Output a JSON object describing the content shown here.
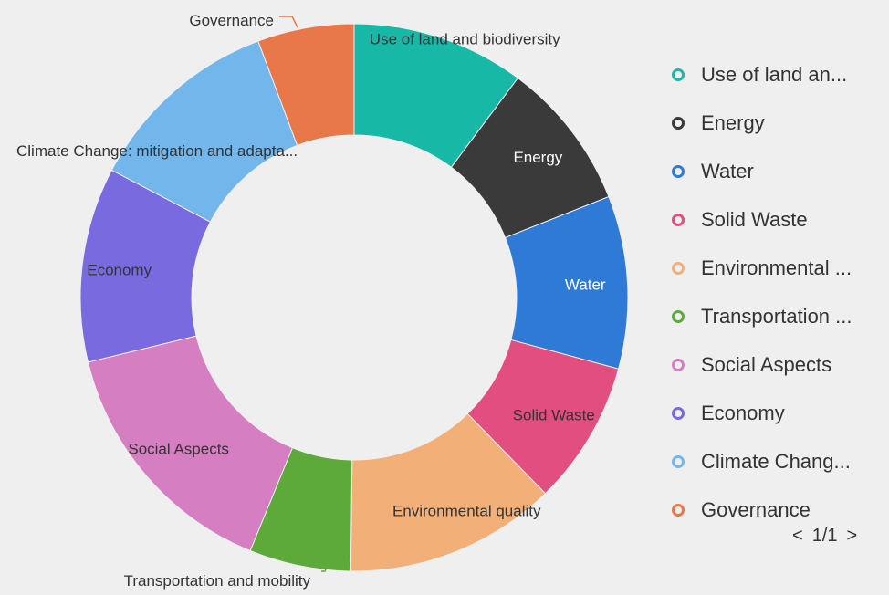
{
  "chart_data": {
    "type": "pie",
    "style": "donut",
    "slices": [
      {
        "label": "Use of land and biodiversity",
        "value": 10.2,
        "color": "#17b8a6"
      },
      {
        "label": "Energy",
        "value": 8.8,
        "color": "#3a3a3a"
      },
      {
        "label": "Water",
        "value": 10.2,
        "color": "#2f7ad6"
      },
      {
        "label": "Solid Waste",
        "value": 8.5,
        "color": "#e24e80"
      },
      {
        "label": "Environmental quality",
        "value": 12.5,
        "color": "#f2b078"
      },
      {
        "label": "Transportation and mobility",
        "value": 6.0,
        "color": "#5daa3a"
      },
      {
        "label": "Social Aspects",
        "value": 15.0,
        "color": "#d67ec2"
      },
      {
        "label": "Economy",
        "value": 11.5,
        "color": "#7a6ae0"
      },
      {
        "label": "Climate Change: mitigation and adapta...",
        "value": 11.6,
        "color": "#72b6ec"
      },
      {
        "label": "Governance",
        "value": 5.7,
        "color": "#e8774a"
      }
    ],
    "legend_position": "right"
  },
  "legend": {
    "items": [
      {
        "label": "Use of land an...",
        "color": "#17b8a6"
      },
      {
        "label": "Energy",
        "color": "#3a3a3a"
      },
      {
        "label": "Water",
        "color": "#2f7ad6"
      },
      {
        "label": "Solid Waste",
        "color": "#e24e80"
      },
      {
        "label": "Environmental ...",
        "color": "#f2b078"
      },
      {
        "label": "Transportation ...",
        "color": "#5daa3a"
      },
      {
        "label": "Social Aspects",
        "color": "#d67ec2"
      },
      {
        "label": "Economy",
        "color": "#7a6ae0"
      },
      {
        "label": "Climate Chang...",
        "color": "#72b6ec"
      },
      {
        "label": "Governance",
        "color": "#e8774a"
      }
    ],
    "pager": {
      "prev": "<",
      "page": "1/1",
      "next": ">"
    }
  }
}
